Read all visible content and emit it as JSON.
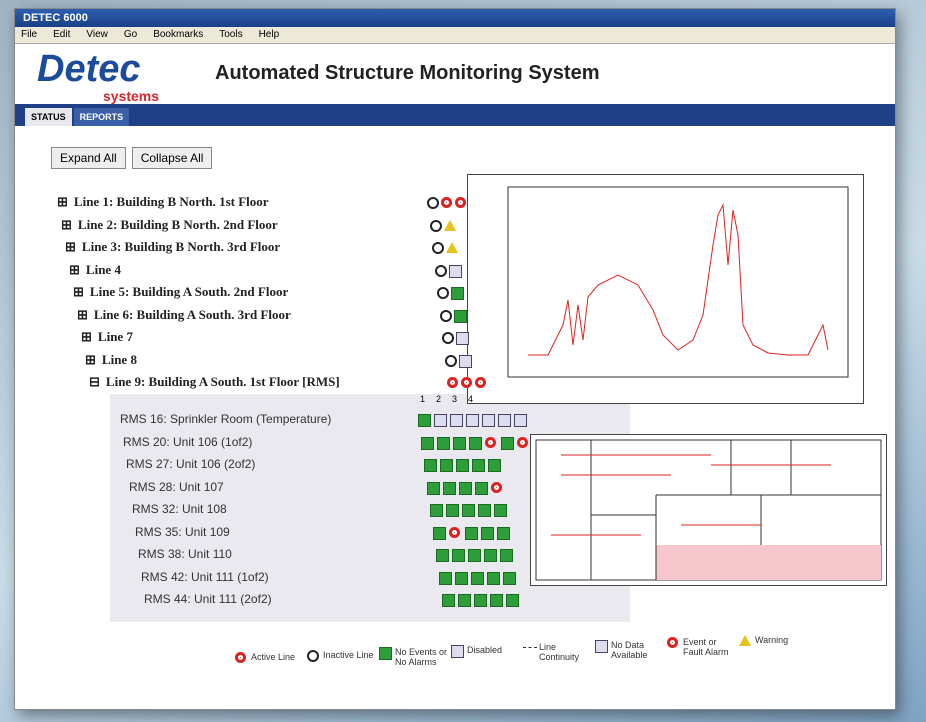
{
  "window": {
    "title": "DETEC 6000",
    "menu": [
      "File",
      "Edit",
      "View",
      "Go",
      "Bookmarks",
      "Tools",
      "Help"
    ]
  },
  "header": {
    "logo": "Detec",
    "logo_sub": "systems",
    "title": "Automated Structure Monitoring System"
  },
  "tabs": [
    "STATUS",
    "REPORTS"
  ],
  "buttons": [
    "Expand All",
    "Collapse All"
  ],
  "lines": [
    {
      "toggle": "⊞",
      "label": "Line 1: Building B North. 1st Floor"
    },
    {
      "toggle": "⊞",
      "label": "Line 2: Building B North. 2nd Floor"
    },
    {
      "toggle": "⊞",
      "label": "Line 3: Building B North. 3rd Floor"
    },
    {
      "toggle": "⊞",
      "label": "Line 4"
    },
    {
      "toggle": "⊞",
      "label": "Line 5: Building A South. 2nd Floor"
    },
    {
      "toggle": "⊞",
      "label": "Line 6: Building A South. 3rd Floor"
    },
    {
      "toggle": "⊞",
      "label": "Line 7"
    },
    {
      "toggle": "⊞",
      "label": "Line 8"
    },
    {
      "toggle": "⊟",
      "label": "Line 9: Building A South. 1st Floor [RMS]"
    }
  ],
  "rms_columns": [
    "1",
    "2",
    "3",
    "4"
  ],
  "rms": [
    "RMS 16: Sprinkler Room (Temperature)",
    "RMS 20: Unit 106 (1of2)",
    "RMS 27: Unit 106 (2of2)",
    "RMS 28: Unit 107",
    "RMS 32: Unit 108",
    "RMS 35: Unit 109",
    "RMS 38: Unit 110",
    "RMS 42: Unit 111 (1of2)",
    "RMS 44: Unit 111 (2of2)"
  ],
  "legend": [
    "Active Line",
    "Inactive Line",
    "No Events or No Alarms",
    "Disabled",
    "Line Continuity",
    "No Data Available",
    "Event or Fault Alarm",
    "Warning"
  ]
}
